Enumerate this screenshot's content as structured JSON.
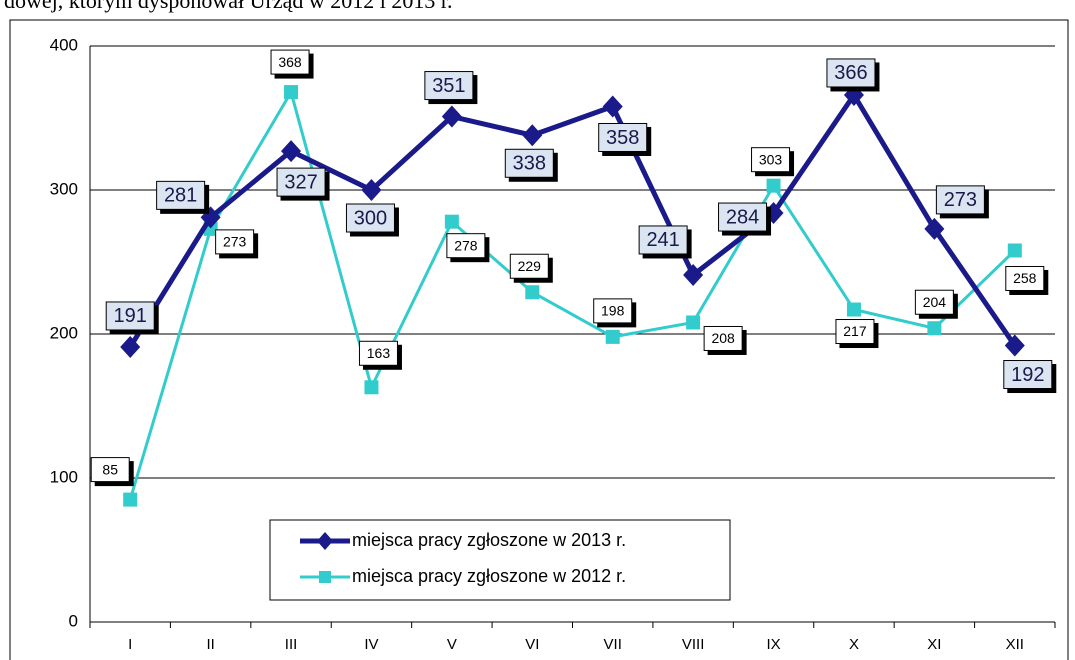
{
  "caption": "dowej, którym dysponował Urząd w 2012 i 2013 r.",
  "chart_data": {
    "type": "line",
    "categories": [
      "I",
      "II",
      "III",
      "IV",
      "V",
      "VI",
      "VII",
      "VIII",
      "IX",
      "X",
      "XI",
      "XII"
    ],
    "series": [
      {
        "name": "miejsca pracy zgłoszone w 2013 r.",
        "color": "#1a1a8a",
        "marker": "diamond",
        "values": [
          191,
          281,
          327,
          300,
          351,
          338,
          358,
          241,
          284,
          366,
          273,
          192
        ]
      },
      {
        "name": "miejsca pracy zgłoszone w 2012 r.",
        "color": "#33cccc",
        "marker": "square",
        "values": [
          85,
          273,
          368,
          163,
          278,
          229,
          198,
          208,
          303,
          217,
          204,
          258
        ]
      }
    ],
    "ylim": [
      0,
      400
    ],
    "yticks": [
      0,
      100,
      200,
      300,
      400
    ],
    "grid": true
  }
}
